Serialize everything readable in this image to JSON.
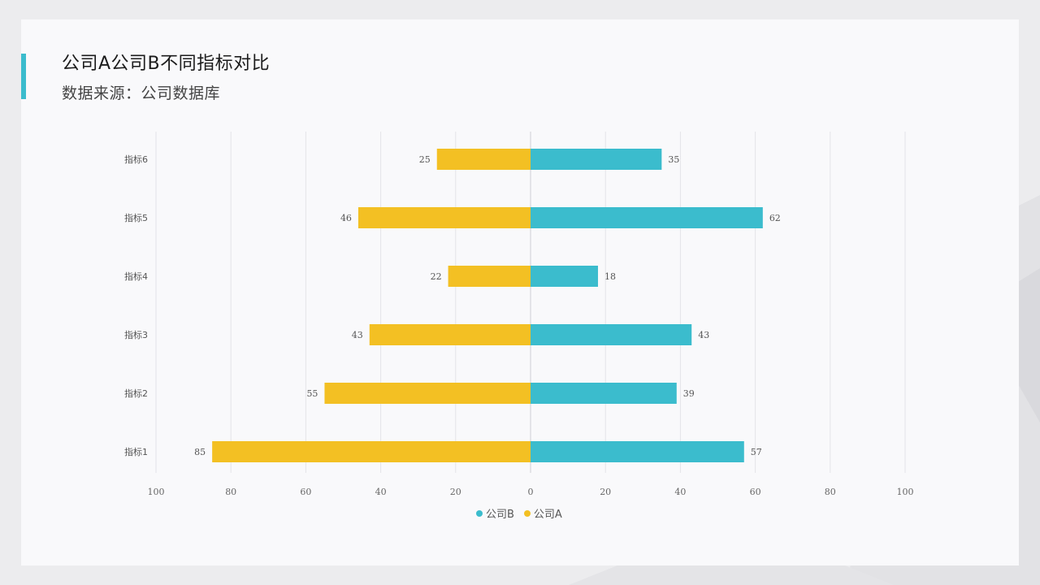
{
  "header": {
    "title": "公司A公司B不同指标对比",
    "subtitle": "数据来源：公司数据库"
  },
  "colors": {
    "company_a": "#f3c023",
    "company_b": "#3bbccd",
    "accent": "#3bbccd"
  },
  "chart_data": {
    "type": "bar",
    "orientation": "horizontal-diverging",
    "title": "公司A公司B不同指标对比",
    "categories": [
      "指标6",
      "指标5",
      "指标4",
      "指标3",
      "指标2",
      "指标1"
    ],
    "series": [
      {
        "name": "公司B",
        "values": [
          35,
          62,
          18,
          43,
          39,
          57
        ]
      },
      {
        "name": "公司A",
        "values": [
          25,
          46,
          22,
          43,
          55,
          85
        ]
      }
    ],
    "xlim": [
      -100,
      100
    ],
    "x_ticks": [
      -100,
      -80,
      -60,
      -40,
      -20,
      0,
      20,
      40,
      60,
      80,
      100
    ],
    "x_tick_labels": [
      "100",
      "80",
      "60",
      "40",
      "20",
      "0",
      "20",
      "40",
      "60",
      "80",
      "100"
    ],
    "grid": true,
    "legend": "bottom-center"
  }
}
